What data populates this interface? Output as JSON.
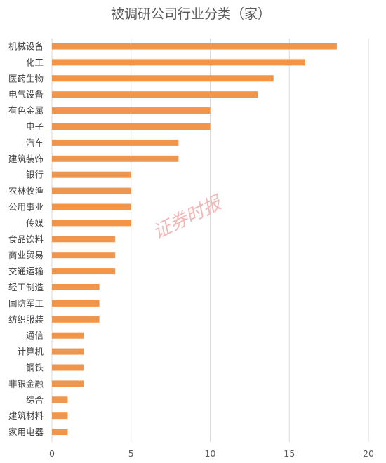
{
  "chart_data": {
    "type": "bar",
    "orientation": "horizontal",
    "title": "被调研公司行业分类（家）",
    "categories": [
      "机械设备",
      "化工",
      "医药生物",
      "电气设备",
      "有色金属",
      "电子",
      "汽车",
      "建筑装饰",
      "银行",
      "农林牧渔",
      "公用事业",
      "传媒",
      "食品饮料",
      "商业贸易",
      "交通运输",
      "轻工制造",
      "国防军工",
      "纺织服装",
      "通信",
      "计算机",
      "钢铁",
      "非银金融",
      "综合",
      "建筑材料",
      "家用电器"
    ],
    "values": [
      18,
      16,
      14,
      13,
      10,
      10,
      8,
      8,
      5,
      5,
      5,
      5,
      4,
      4,
      4,
      3,
      3,
      3,
      2,
      2,
      2,
      2,
      1,
      1,
      1
    ],
    "xlim": [
      0,
      20
    ],
    "xticks": [
      "0",
      "5",
      "10",
      "15",
      "20"
    ],
    "grid": "vertical",
    "bar_color": "#F0954A",
    "grid_color": "#D9D9D9"
  },
  "watermark": "证券时报"
}
